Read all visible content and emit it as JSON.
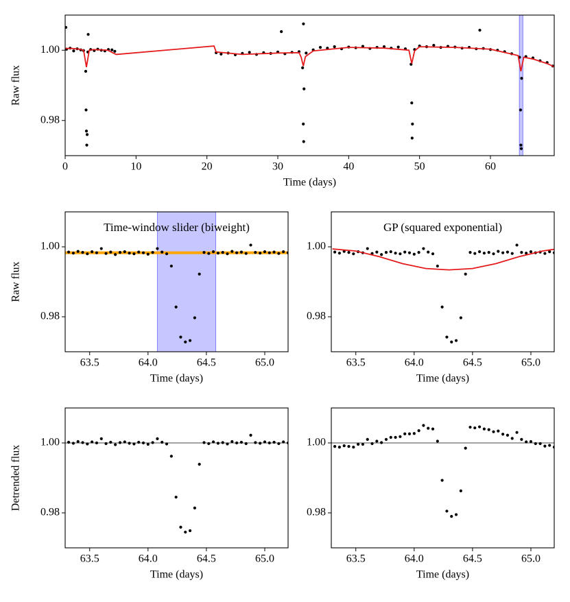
{
  "chart_data": [
    {
      "type": "scatter",
      "ylabel": "Raw flux",
      "xlabel": "Time (days)",
      "xlim": [
        0,
        69
      ],
      "ylim": [
        0.97,
        1.01
      ],
      "xticks": [
        0,
        10,
        20,
        30,
        40,
        50,
        60
      ],
      "yticks": [
        0.98,
        {
          "value": 1.0,
          "label": "1.00"
        }
      ],
      "span": [
        64.08,
        64.58
      ],
      "span_color": "#0000ff",
      "span_alpha": 0.22,
      "series": [
        {
          "mode": "markers",
          "color": "#000000",
          "x": [
            0.1,
            0.2,
            0.7,
            1.2,
            1.7,
            2.2,
            2.6,
            2.9,
            2.95,
            3.0,
            3.05,
            3.1,
            3.2,
            3.25,
            3.6,
            4.1,
            4.6,
            5.1,
            5.6,
            6.1,
            6.6,
            7.0,
            21.3,
            22,
            23,
            24,
            25,
            26,
            27,
            28,
            29,
            30,
            30.5,
            31,
            32,
            33,
            33.5,
            33.6,
            33.62,
            33.65,
            33.7,
            34,
            35,
            36,
            37,
            38,
            39,
            40,
            41,
            42,
            43,
            44,
            45,
            46,
            47,
            48,
            48.8,
            48.9,
            48.95,
            49.0,
            49.3,
            50,
            51,
            52,
            53,
            54,
            55,
            56,
            57,
            58,
            58.5,
            59,
            60,
            61,
            62,
            63,
            64.1,
            64.25,
            64.3,
            64.35,
            64.4,
            65,
            66,
            67,
            68,
            68.8
          ],
          "values": [
            1.0065,
            1.0003,
            1.0006,
            0.9998,
            1.0004,
            1.0001,
            0.9999,
            0.994,
            0.983,
            0.977,
            0.973,
            0.976,
            0.9995,
            1.0045,
            1.0002,
            0.9999,
            1.0003,
            1.0,
            0.9998,
            1.0002,
            1.0001,
            0.9997,
            0.9993,
            0.9989,
            0.9992,
            0.9987,
            0.9991,
            0.9994,
            0.9988,
            0.9993,
            0.9991,
            0.9995,
            1.0053,
            0.999,
            0.9994,
            0.9996,
            0.995,
            0.979,
            1.0075,
            0.974,
            0.989,
            0.9992,
            1.0001,
            1.0008,
            1.0006,
            1.001,
            1.0004,
            1.0009,
            1.0007,
            1.0011,
            1.0005,
            1.0008,
            1.001,
            1.0006,
            1.0009,
            1.0004,
            0.996,
            0.985,
            0.975,
            0.979,
            1.0002,
            1.0012,
            1.001,
            1.0014,
            1.0008,
            1.0011,
            1.0009,
            1.0006,
            1.0008,
            1.0004,
            1.0057,
            1.0005,
            1.0002,
            1.0,
            0.9996,
            0.999,
            0.998,
            0.983,
            0.973,
            0.972,
            0.992,
            0.9982,
            0.9978,
            0.997,
            0.9965,
            0.9955
          ]
        },
        {
          "mode": "lines",
          "color": "#e41a1c",
          "x": [
            0,
            1,
            2,
            2.6,
            3.0,
            3.4,
            4,
            5,
            6,
            7.2,
            21,
            21.3,
            25,
            30,
            33,
            33.3,
            33.6,
            33.9,
            35,
            40,
            45,
            48.5,
            48.9,
            49.3,
            50,
            55,
            60,
            63.9,
            64.3,
            64.7,
            66,
            68,
            69
          ],
          "values": [
            1.0005,
            1.0005,
            1.0003,
            1.0,
            0.9952,
            1.0,
            1.0002,
            1.0001,
            1.0,
            0.9988,
            1.0012,
            0.9995,
            0.9988,
            0.9992,
            0.9993,
            0.998,
            0.9955,
            0.9982,
            0.9998,
            1.0008,
            1.0006,
            1.0,
            0.9962,
            0.9998,
            1.001,
            1.0008,
            1.0003,
            0.9985,
            0.994,
            0.998,
            0.9975,
            0.9962,
            0.9953
          ]
        }
      ]
    },
    {
      "type": "scatter",
      "title": "Time-window slider (biweight)",
      "ylabel": "Raw flux",
      "xlabel": "Time (days)",
      "xlim": [
        63.29,
        65.2
      ],
      "ylim": [
        0.97,
        1.01
      ],
      "xticks": [
        63.5,
        {
          "value": 64.0,
          "label": "64.0"
        },
        64.5,
        {
          "value": 65.0,
          "label": "65.0"
        }
      ],
      "yticks": [
        0.98,
        {
          "value": 1.0,
          "label": "1.00"
        }
      ],
      "span": [
        64.08,
        64.58
      ],
      "span_color": "#0000ff",
      "span_alpha": 0.22,
      "series": [
        {
          "mode": "lines",
          "color": "#ffa500",
          "x": [
            63.29,
            65.2
          ],
          "values": [
            0.9983,
            0.9983
          ]
        },
        {
          "mode": "markers",
          "color": "#000000",
          "x": [
            63.32,
            63.36,
            63.4,
            63.44,
            63.48,
            63.52,
            63.56,
            63.6,
            63.64,
            63.68,
            63.72,
            63.76,
            63.8,
            63.84,
            63.88,
            63.92,
            63.96,
            64.0,
            64.04,
            64.08,
            64.12,
            64.16,
            64.2,
            64.24,
            64.28,
            64.32,
            64.36,
            64.4,
            64.44,
            64.48,
            64.52,
            64.56,
            64.6,
            64.64,
            64.68,
            64.72,
            64.76,
            64.8,
            64.84,
            64.88,
            64.92,
            64.96,
            65.0,
            65.04,
            65.08,
            65.12,
            65.16,
            65.2
          ],
          "values": [
            0.9985,
            0.9982,
            0.9987,
            0.9984,
            0.998,
            0.9986,
            0.9983,
            0.9995,
            0.9981,
            0.9985,
            0.9978,
            0.9984,
            0.9986,
            0.9982,
            0.998,
            0.9985,
            0.9983,
            0.9979,
            0.9984,
            0.9995,
            0.9985,
            0.998,
            0.9945,
            0.9828,
            0.9742,
            0.9728,
            0.9732,
            0.9797,
            0.9922,
            0.9984,
            0.9981,
            0.9986,
            0.9982,
            0.9984,
            0.998,
            0.9987,
            0.9983,
            0.9985,
            0.9981,
            1.0005,
            0.9984,
            0.9982,
            0.9986,
            0.9983,
            0.9985,
            0.9981,
            0.9986,
            0.9983
          ]
        }
      ]
    },
    {
      "type": "scatter",
      "title": "GP (squared exponential)",
      "xlabel": "Time (days)",
      "xlim": [
        63.29,
        65.2
      ],
      "ylim": [
        0.97,
        1.01
      ],
      "xticks": [
        63.5,
        {
          "value": 64.0,
          "label": "64.0"
        },
        64.5,
        {
          "value": 65.0,
          "label": "65.0"
        }
      ],
      "yticks": [
        0.98,
        {
          "value": 1.0,
          "label": "1.00"
        }
      ],
      "series": [
        {
          "mode": "markers",
          "color": "#000000",
          "x": [
            63.32,
            63.36,
            63.4,
            63.44,
            63.48,
            63.52,
            63.56,
            63.6,
            63.64,
            63.68,
            63.72,
            63.76,
            63.8,
            63.84,
            63.88,
            63.92,
            63.96,
            64.0,
            64.04,
            64.08,
            64.12,
            64.16,
            64.2,
            64.24,
            64.28,
            64.32,
            64.36,
            64.4,
            64.44,
            64.48,
            64.52,
            64.56,
            64.6,
            64.64,
            64.68,
            64.72,
            64.76,
            64.8,
            64.84,
            64.88,
            64.92,
            64.96,
            65.0,
            65.04,
            65.08,
            65.12,
            65.16,
            65.2
          ],
          "values": [
            0.9985,
            0.9982,
            0.9987,
            0.9984,
            0.998,
            0.9986,
            0.9983,
            0.9995,
            0.9981,
            0.9985,
            0.9978,
            0.9984,
            0.9986,
            0.9982,
            0.998,
            0.9985,
            0.9983,
            0.9979,
            0.9984,
            0.9995,
            0.9985,
            0.998,
            0.9945,
            0.9828,
            0.9742,
            0.9728,
            0.9732,
            0.9797,
            0.9922,
            0.9984,
            0.9981,
            0.9986,
            0.9982,
            0.9984,
            0.998,
            0.9987,
            0.9983,
            0.9985,
            0.9981,
            1.0005,
            0.9984,
            0.9982,
            0.9986,
            0.9983,
            0.9985,
            0.9981,
            0.9986,
            0.9983
          ]
        },
        {
          "mode": "lines",
          "color": "#e41a1c",
          "x": [
            63.3,
            63.5,
            63.7,
            63.9,
            64.1,
            64.3,
            64.5,
            64.7,
            64.9,
            65.1,
            65.2
          ],
          "values": [
            0.9994,
            0.9988,
            0.9972,
            0.9952,
            0.9938,
            0.9934,
            0.9938,
            0.9952,
            0.9972,
            0.9988,
            0.9993
          ]
        }
      ]
    },
    {
      "type": "scatter",
      "ylabel": "Detrended flux",
      "xlabel": "Time (days)",
      "xlim": [
        63.29,
        65.2
      ],
      "ylim": [
        0.97,
        1.01
      ],
      "xticks": [
        63.5,
        {
          "value": 64.0,
          "label": "64.0"
        },
        64.5,
        {
          "value": 65.0,
          "label": "65.0"
        }
      ],
      "yticks": [
        0.98,
        {
          "value": 1.0,
          "label": "1.00"
        }
      ],
      "hline": 1.0,
      "series": [
        {
          "mode": "markers",
          "color": "#000000",
          "x": [
            63.32,
            63.36,
            63.4,
            63.44,
            63.48,
            63.52,
            63.56,
            63.6,
            63.64,
            63.68,
            63.72,
            63.76,
            63.8,
            63.84,
            63.88,
            63.92,
            63.96,
            64.0,
            64.04,
            64.08,
            64.12,
            64.16,
            64.2,
            64.24,
            64.28,
            64.32,
            64.36,
            64.4,
            64.44,
            64.48,
            64.52,
            64.56,
            64.6,
            64.64,
            64.68,
            64.72,
            64.76,
            64.8,
            64.84,
            64.88,
            64.92,
            64.96,
            65.0,
            65.04,
            65.08,
            65.12,
            65.16,
            65.2
          ],
          "values": [
            1.0002,
            0.9999,
            1.0004,
            1.0001,
            0.9997,
            1.0003,
            1.0,
            1.0012,
            0.9998,
            1.0002,
            0.9995,
            1.0001,
            1.0003,
            0.9999,
            0.9997,
            1.0002,
            1.0,
            0.9996,
            1.0001,
            1.0012,
            1.0002,
            0.9997,
            0.9962,
            0.9845,
            0.9759,
            0.9745,
            0.9749,
            0.9814,
            0.9939,
            1.0001,
            0.9998,
            1.0003,
            0.9999,
            1.0001,
            0.9997,
            1.0004,
            1.0,
            1.0002,
            0.9998,
            1.0022,
            1.0001,
            0.9999,
            1.0003,
            1.0,
            1.0002,
            0.9998,
            1.0003,
            1.0
          ]
        }
      ]
    },
    {
      "type": "scatter",
      "xlabel": "Time (days)",
      "xlim": [
        63.29,
        65.2
      ],
      "ylim": [
        0.97,
        1.01
      ],
      "xticks": [
        63.5,
        {
          "value": 64.0,
          "label": "64.0"
        },
        64.5,
        {
          "value": 65.0,
          "label": "65.0"
        }
      ],
      "yticks": [
        0.98,
        {
          "value": 1.0,
          "label": "1.00"
        }
      ],
      "hline": 1.0,
      "series": [
        {
          "mode": "markers",
          "color": "#000000",
          "x": [
            63.32,
            63.36,
            63.4,
            63.44,
            63.48,
            63.52,
            63.56,
            63.6,
            63.64,
            63.68,
            63.72,
            63.76,
            63.8,
            63.84,
            63.88,
            63.92,
            63.96,
            64.0,
            64.04,
            64.08,
            64.12,
            64.16,
            64.2,
            64.24,
            64.28,
            64.32,
            64.36,
            64.4,
            64.44,
            64.48,
            64.52,
            64.56,
            64.6,
            64.64,
            64.68,
            64.72,
            64.76,
            64.8,
            64.84,
            64.88,
            64.92,
            64.96,
            65.0,
            65.04,
            65.08,
            65.12,
            65.16,
            65.2
          ],
          "values": [
            0.999,
            0.9988,
            0.9992,
            0.999,
            0.9988,
            0.9996,
            0.9996,
            1.001,
            0.9998,
            1.0005,
            1.0001,
            1.001,
            1.0016,
            1.0016,
            1.0018,
            1.0026,
            1.0026,
            1.0027,
            1.0035,
            1.005,
            1.0042,
            1.004,
            1.0005,
            0.9893,
            0.9805,
            0.979,
            0.9795,
            0.9863,
            0.9985,
            1.0045,
            1.0043,
            1.0046,
            1.004,
            1.0038,
            1.0032,
            1.0034,
            1.0025,
            1.0022,
            1.0013,
            1.003,
            1.001,
            1.0003,
            1.0004,
            0.9998,
            0.9998,
            0.9991,
            0.9993,
            0.9988
          ]
        }
      ]
    }
  ]
}
